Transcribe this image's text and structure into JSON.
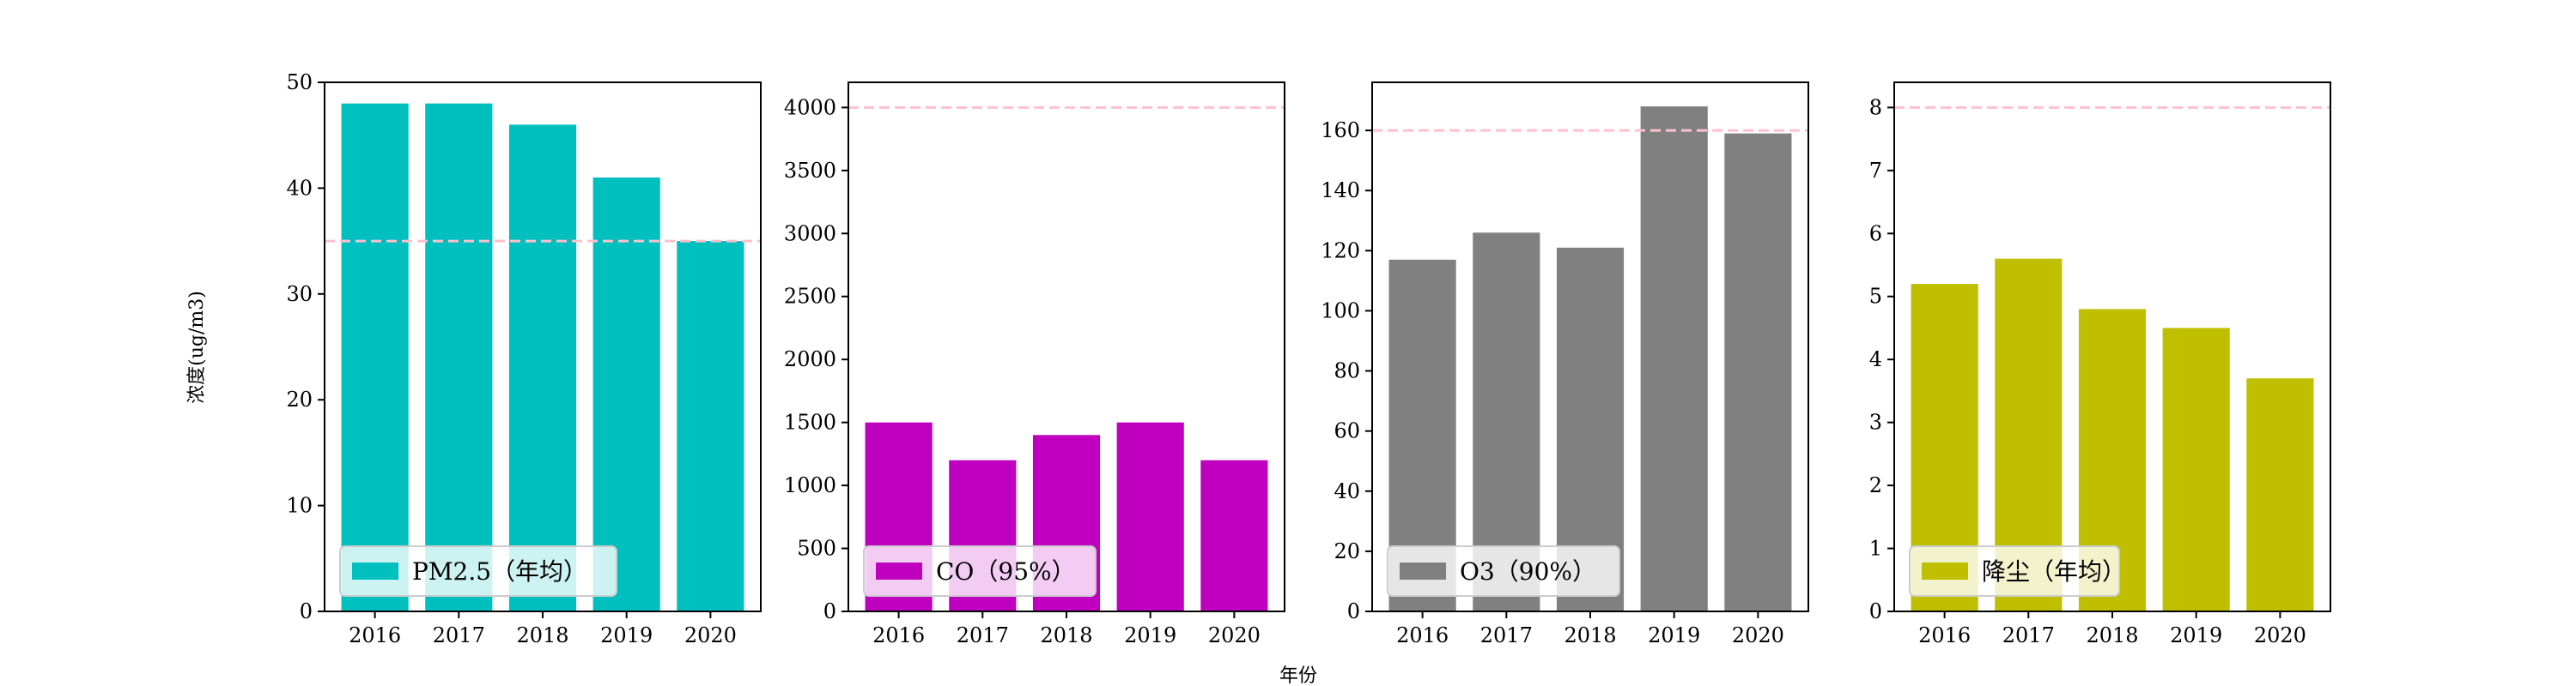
{
  "figure": {
    "ylabel": "浓度(ug/m3)",
    "xlabel": "年份"
  },
  "colors": {
    "threshold": "#ffc0cb",
    "axes": "#000000"
  },
  "chart_data": [
    {
      "type": "bar",
      "categories": [
        "2016",
        "2017",
        "2018",
        "2019",
        "2020"
      ],
      "values": [
        48,
        48,
        46,
        41,
        35
      ],
      "legend": "PM2.5（年均）",
      "color": "#00bfbf",
      "ylim": [
        0,
        50
      ],
      "yticks": [
        0,
        10,
        20,
        30,
        40,
        50
      ],
      "threshold": 35,
      "legend_position": "lower-left"
    },
    {
      "type": "bar",
      "categories": [
        "2016",
        "2017",
        "2018",
        "2019",
        "2020"
      ],
      "values": [
        1500,
        1200,
        1400,
        1500,
        1200
      ],
      "legend": "CO（95%）",
      "color": "#bf00bf",
      "ylim": [
        0,
        4200
      ],
      "yticks": [
        0,
        500,
        1000,
        1500,
        2000,
        2500,
        3000,
        3500,
        4000
      ],
      "threshold": 4000,
      "legend_position": "lower-left"
    },
    {
      "type": "bar",
      "categories": [
        "2016",
        "2017",
        "2018",
        "2019",
        "2020"
      ],
      "values": [
        117,
        126,
        121,
        168,
        159
      ],
      "legend": "O3（90%）",
      "color": "#808080",
      "ylim": [
        0,
        176
      ],
      "yticks": [
        0,
        20,
        40,
        60,
        80,
        100,
        120,
        140,
        160
      ],
      "threshold": 160,
      "legend_position": "lower-left"
    },
    {
      "type": "bar",
      "categories": [
        "2016",
        "2017",
        "2018",
        "2019",
        "2020"
      ],
      "values": [
        5.2,
        5.6,
        4.8,
        4.5,
        3.7
      ],
      "legend": "降尘（年均）",
      "color": "#bfbf00",
      "ylim": [
        0,
        8.4
      ],
      "yticks": [
        0,
        1,
        2,
        3,
        4,
        5,
        6,
        7,
        8
      ],
      "threshold": 8,
      "legend_position": "lower-left"
    }
  ]
}
